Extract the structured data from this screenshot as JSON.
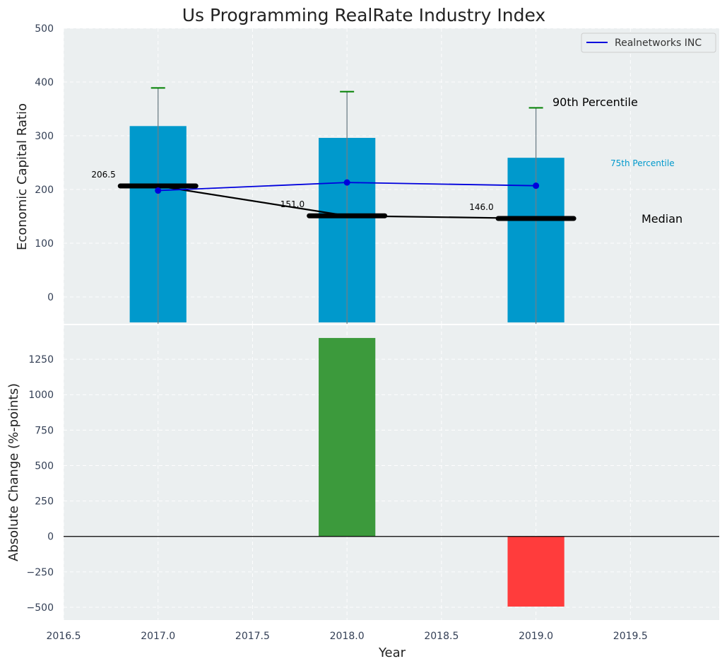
{
  "chart_data": [
    {
      "type": "bar",
      "title": "Us Programming RealRate Industry Index",
      "ylabel": "Economic Capital Ratio",
      "ylim": [
        -50,
        500
      ],
      "yticks": [
        0,
        100,
        200,
        300,
        400,
        500
      ],
      "grid": true,
      "legend": {
        "placement": "top-right",
        "entries": [
          "Realnetworks INC"
        ]
      },
      "categories": [
        2017,
        2018,
        2019
      ],
      "series": [
        {
          "name": "75th Percentile",
          "kind": "bar",
          "values": [
            318,
            296,
            259
          ],
          "color": "#0099cc"
        },
        {
          "name": "90th Percentile",
          "kind": "whisker-cap",
          "values": [
            389,
            382,
            352
          ],
          "color": "#008000"
        },
        {
          "name": "Median",
          "kind": "thick-step-line",
          "values": [
            206.5,
            151.0,
            146.0
          ],
          "color": "#000000"
        },
        {
          "name": "Realnetworks INC",
          "kind": "line",
          "values": [
            198,
            213,
            207
          ],
          "color": "#0000dd"
        }
      ],
      "annotations": {
        "median_labels": [
          "206.5",
          "151.0",
          "146.0"
        ],
        "p90_label": "90th Percentile",
        "p75_label": "75th Percentile",
        "median_label": "Median"
      }
    },
    {
      "type": "bar",
      "xlabel": "Year",
      "ylabel": "Absolute Change (%-points)",
      "xlim": [
        2016.5,
        2019.97
      ],
      "xticks": [
        2016.5,
        2017.0,
        2017.5,
        2018.0,
        2018.5,
        2019.0,
        2019.5
      ],
      "xtick_labels": [
        "2016.5",
        "2017.0",
        "2017.5",
        "2018.0",
        "2018.5",
        "2019.0",
        "2019.5"
      ],
      "ylim": [
        -590,
        1490
      ],
      "yticks": [
        -500,
        -250,
        0,
        250,
        500,
        750,
        1000,
        1250
      ],
      "ytick_labels": [
        "−500",
        "−250",
        "0",
        "250",
        "500",
        "750",
        "1000",
        "1250"
      ],
      "grid": true,
      "categories": [
        2018,
        2019
      ],
      "values": [
        1400,
        -495
      ],
      "colors": {
        "positive": "#3c9a3c",
        "negative": "#ff3c3c"
      }
    }
  ]
}
